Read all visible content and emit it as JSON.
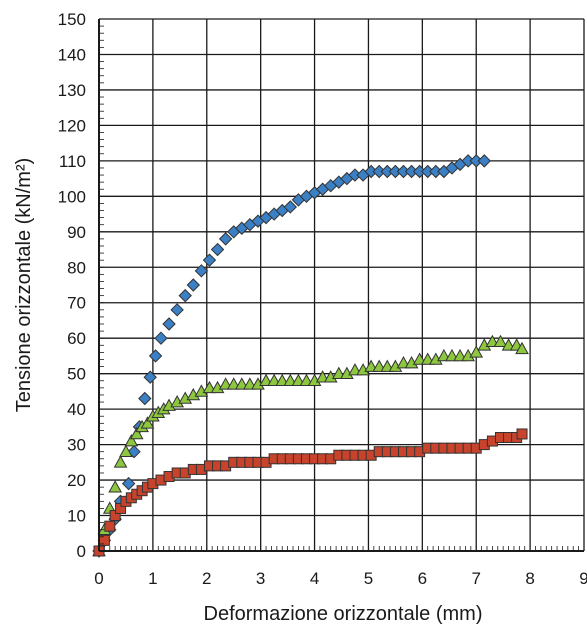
{
  "chart_data": {
    "type": "scatter",
    "title": "",
    "xlabel": "Deformazione orizzontale (mm)",
    "ylabel": "Tensione orizzontale (kN/m²)",
    "xlim": [
      0,
      9
    ],
    "ylim": [
      0,
      150
    ],
    "x_ticks": [
      "0",
      "1",
      "2",
      "3",
      "4",
      "5",
      "6",
      "7",
      "8",
      "9"
    ],
    "y_ticks": [
      "0",
      "10",
      "20",
      "30",
      "40",
      "50",
      "60",
      "70",
      "80",
      "90",
      "100",
      "110",
      "120",
      "130",
      "140",
      "150"
    ],
    "grid": true,
    "legend": "none",
    "series": [
      {
        "marker": "diamond",
        "color": "#3b7fc4",
        "x": [
          0.0,
          0.1,
          0.2,
          0.3,
          0.4,
          0.55,
          0.65,
          0.75,
          0.85,
          0.95,
          1.05,
          1.15,
          1.3,
          1.45,
          1.6,
          1.75,
          1.9,
          2.05,
          2.2,
          2.35,
          2.5,
          2.65,
          2.8,
          2.95,
          3.1,
          3.25,
          3.4,
          3.55,
          3.7,
          3.85,
          4.0,
          4.15,
          4.3,
          4.45,
          4.6,
          4.75,
          4.9,
          5.05,
          5.2,
          5.35,
          5.5,
          5.65,
          5.8,
          5.95,
          6.1,
          6.25,
          6.4,
          6.55,
          6.7,
          6.85,
          7.0,
          7.15
        ],
        "y": [
          0,
          3,
          6,
          9,
          14,
          19,
          28,
          35,
          43,
          49,
          55,
          60,
          64,
          68,
          72,
          75,
          79,
          82,
          85,
          88,
          90,
          91,
          92,
          93,
          94,
          95,
          96,
          97,
          99,
          100,
          101,
          102,
          103,
          104,
          105,
          106,
          106,
          107,
          107,
          107,
          107,
          107,
          107,
          107,
          107,
          107,
          107,
          108,
          109,
          110,
          110,
          110
        ]
      },
      {
        "marker": "triangle",
        "color": "#8dc63f",
        "x": [
          0.0,
          0.1,
          0.2,
          0.3,
          0.4,
          0.5,
          0.6,
          0.7,
          0.8,
          0.9,
          1.0,
          1.1,
          1.2,
          1.3,
          1.45,
          1.6,
          1.75,
          1.9,
          2.05,
          2.2,
          2.35,
          2.5,
          2.65,
          2.8,
          2.95,
          3.1,
          3.25,
          3.4,
          3.55,
          3.7,
          3.85,
          4.0,
          4.15,
          4.3,
          4.45,
          4.6,
          4.75,
          4.9,
          5.05,
          5.2,
          5.35,
          5.5,
          5.65,
          5.8,
          5.95,
          6.1,
          6.25,
          6.4,
          6.55,
          6.7,
          6.85,
          7.0,
          7.15,
          7.3,
          7.45,
          7.6,
          7.75,
          7.85
        ],
        "y": [
          0,
          6,
          12,
          18,
          25,
          28,
          31,
          33,
          35,
          36,
          38,
          39,
          40,
          41,
          42,
          43,
          44,
          45,
          46,
          46,
          47,
          47,
          47,
          47,
          47,
          48,
          48,
          48,
          48,
          48,
          48,
          48,
          49,
          49,
          50,
          50,
          51,
          51,
          52,
          52,
          52,
          52,
          53,
          53,
          54,
          54,
          54,
          55,
          55,
          55,
          55,
          56,
          58,
          59,
          59,
          58,
          58,
          57
        ]
      },
      {
        "marker": "square",
        "color": "#c8432b",
        "x": [
          0.0,
          0.1,
          0.2,
          0.3,
          0.4,
          0.5,
          0.6,
          0.7,
          0.8,
          0.9,
          1.0,
          1.15,
          1.3,
          1.45,
          1.6,
          1.75,
          1.9,
          2.05,
          2.2,
          2.35,
          2.5,
          2.65,
          2.8,
          2.95,
          3.1,
          3.25,
          3.4,
          3.55,
          3.7,
          3.85,
          4.0,
          4.15,
          4.3,
          4.45,
          4.6,
          4.75,
          4.9,
          5.05,
          5.2,
          5.35,
          5.5,
          5.65,
          5.8,
          5.95,
          6.1,
          6.25,
          6.4,
          6.55,
          6.7,
          6.85,
          7.0,
          7.15,
          7.3,
          7.45,
          7.6,
          7.75,
          7.85
        ],
        "y": [
          0,
          3,
          7,
          10,
          12,
          14,
          15,
          16,
          17,
          18,
          19,
          20,
          21,
          22,
          22,
          23,
          23,
          24,
          24,
          24,
          25,
          25,
          25,
          25,
          25,
          26,
          26,
          26,
          26,
          26,
          26,
          26,
          26,
          27,
          27,
          27,
          27,
          27,
          28,
          28,
          28,
          28,
          28,
          28,
          29,
          29,
          29,
          29,
          29,
          29,
          29,
          30,
          31,
          32,
          32,
          32,
          33
        ]
      }
    ]
  }
}
